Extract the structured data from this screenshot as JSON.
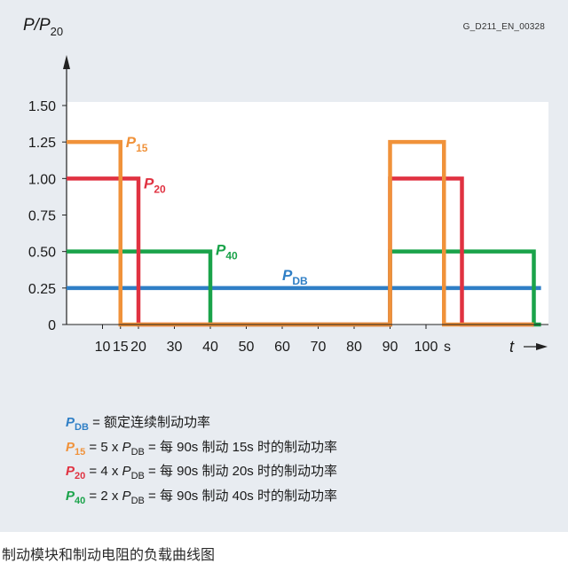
{
  "figure_code": "G_D211_EN_00328",
  "caption": "制动模块和制动电阻的负载曲线图",
  "chart_data": {
    "type": "line",
    "ylabel": {
      "main": "P/P",
      "sub": "20"
    },
    "xlabel": "t",
    "x_unit": "s",
    "xlim": [
      0,
      132
    ],
    "ylim": [
      0,
      1.5
    ],
    "x_ticks": [
      10,
      15,
      20,
      30,
      40,
      50,
      60,
      70,
      80,
      90,
      100
    ],
    "y_ticks": [
      0,
      0.25,
      0.5,
      0.75,
      1.0,
      1.25,
      1.5
    ],
    "y_tick_labels": [
      "0",
      "0.25",
      "0.50",
      "0.75",
      "1.00",
      "1.25",
      "1.50"
    ],
    "series": [
      {
        "name": "P",
        "sub": "15",
        "color": "#f0923a",
        "x": [
          0,
          15,
          15,
          90,
          90,
          105,
          105,
          130
        ],
        "y": [
          1.25,
          1.25,
          0,
          0,
          1.25,
          1.25,
          0,
          0
        ]
      },
      {
        "name": "P",
        "sub": "20",
        "color": "#e03241",
        "x": [
          0,
          20,
          20,
          90,
          90,
          110,
          110,
          130
        ],
        "y": [
          1.0,
          1.0,
          0,
          0,
          1.0,
          1.0,
          0,
          0
        ]
      },
      {
        "name": "P",
        "sub": "40",
        "color": "#1aa34a",
        "x": [
          0,
          40,
          40,
          90,
          90,
          130,
          130,
          132
        ],
        "y": [
          0.5,
          0.5,
          0,
          0,
          0.5,
          0.5,
          0,
          0
        ]
      },
      {
        "name": "P",
        "sub": "DB",
        "color": "#2f7fc6",
        "x": [
          0,
          132
        ],
        "y": [
          0.25,
          0.25
        ]
      }
    ]
  },
  "legend": [
    {
      "sym": "P",
      "sub": "DB",
      "color": "#2f7fc6",
      "text": " = 额定连续制动功率"
    },
    {
      "sym": "P",
      "sub": "15",
      "color": "#f0923a",
      "text": " = 5 x ",
      "text2": " = 每 90s 制动 15s 时的制动功率"
    },
    {
      "sym": "P",
      "sub": "20",
      "color": "#e03241",
      "text": " = 4 x ",
      "text2": " = 每 90s 制动 20s 时的制动功率"
    },
    {
      "sym": "P",
      "sub": "40",
      "color": "#1aa34a",
      "text": " = 2 x ",
      "text2": " = 每 90s 制动 40s 时的制动功率"
    }
  ],
  "pdb_symbol": {
    "main": "P",
    "sub": "DB"
  }
}
